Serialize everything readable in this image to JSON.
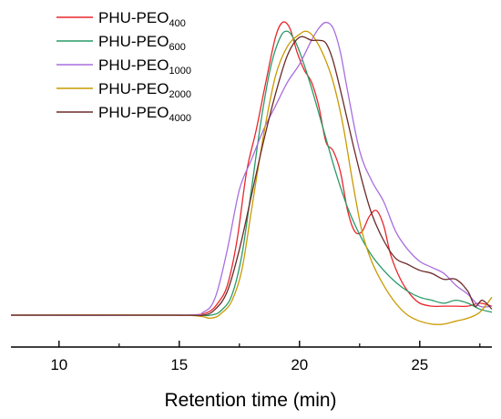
{
  "chart_data": {
    "type": "line",
    "title": "",
    "xlabel": "Retention time (min)",
    "ylabel": "",
    "xlim": [
      8,
      28
    ],
    "ylim": [
      -0.15,
      1.0
    ],
    "xticks": [
      10,
      15,
      20,
      25
    ],
    "xtick_labels": [
      "10",
      "15",
      "20",
      "25"
    ],
    "grid": false,
    "legend_position": "top-left",
    "series": [
      {
        "name": "PHU-PEO400",
        "label_main": "PHU-PEO",
        "label_sub": "400",
        "color": "#e8262b",
        "x": [
          8,
          14,
          15.5,
          16.2,
          16.6,
          17.0,
          17.4,
          17.8,
          18.2,
          18.6,
          19.0,
          19.3,
          19.6,
          19.9,
          20.2,
          20.5,
          20.8,
          21.1,
          21.4,
          21.7,
          22.0,
          22.3,
          22.6,
          22.9,
          23.2,
          23.5,
          23.8,
          24.2,
          24.6,
          25.0,
          25.5,
          26.0,
          26.5,
          27.0,
          27.5,
          28.0
        ],
        "y": [
          0.0,
          0.0,
          0.0,
          0.01,
          0.04,
          0.1,
          0.25,
          0.48,
          0.62,
          0.78,
          0.93,
          0.98,
          0.96,
          0.88,
          0.82,
          0.78,
          0.7,
          0.58,
          0.55,
          0.48,
          0.35,
          0.28,
          0.28,
          0.33,
          0.35,
          0.3,
          0.2,
          0.12,
          0.07,
          0.04,
          0.03,
          0.03,
          0.03,
          0.03,
          0.04,
          0.03
        ]
      },
      {
        "name": "PHU-PEO600",
        "label_main": "PHU-PEO",
        "label_sub": "600",
        "color": "#2a9a69",
        "x": [
          8,
          15,
          16.3,
          16.8,
          17.2,
          17.6,
          18.0,
          18.4,
          18.8,
          19.2,
          19.5,
          19.8,
          20.1,
          20.5,
          21.0,
          21.5,
          22.0,
          22.5,
          23.0,
          23.5,
          24.0,
          24.5,
          25.0,
          25.5,
          26.0,
          26.5,
          27.0,
          27.5,
          28.0
        ],
        "y": [
          0.0,
          0.0,
          0.0,
          0.02,
          0.07,
          0.2,
          0.42,
          0.65,
          0.83,
          0.93,
          0.95,
          0.92,
          0.86,
          0.76,
          0.62,
          0.48,
          0.36,
          0.27,
          0.2,
          0.15,
          0.11,
          0.08,
          0.06,
          0.05,
          0.04,
          0.05,
          0.04,
          0.02,
          0.01
        ]
      },
      {
        "name": "PHU-PEO1000",
        "label_main": "PHU-PEO",
        "label_sub": "1000",
        "color": "#a86ede",
        "x": [
          8,
          15,
          16.0,
          16.5,
          17.0,
          17.5,
          18.0,
          18.5,
          19.0,
          19.5,
          20.0,
          20.5,
          20.8,
          21.1,
          21.4,
          21.7,
          22.0,
          22.5,
          23.0,
          23.5,
          24.0,
          24.5,
          25.0,
          25.5,
          26.0,
          26.5,
          27.0,
          27.5,
          28.0
        ],
        "y": [
          0.0,
          0.0,
          0.01,
          0.06,
          0.22,
          0.42,
          0.52,
          0.62,
          0.7,
          0.78,
          0.84,
          0.92,
          0.96,
          0.98,
          0.96,
          0.88,
          0.75,
          0.55,
          0.45,
          0.38,
          0.28,
          0.22,
          0.18,
          0.16,
          0.14,
          0.1,
          0.07,
          0.03,
          0.03
        ]
      },
      {
        "name": "PHU-PEO2000",
        "label_main": "PHU-PEO",
        "label_sub": "2000",
        "color": "#c99a00",
        "x": [
          8,
          15,
          16.3,
          16.8,
          17.2,
          17.6,
          18.0,
          18.5,
          19.0,
          19.5,
          20.0,
          20.3,
          20.6,
          21.0,
          21.4,
          21.8,
          22.2,
          22.6,
          23.0,
          23.5,
          24.0,
          24.5,
          25.0,
          25.5,
          26.0,
          26.5,
          27.0,
          27.5,
          28.0
        ],
        "y": [
          0.0,
          0.0,
          -0.01,
          0.01,
          0.05,
          0.15,
          0.35,
          0.6,
          0.8,
          0.9,
          0.94,
          0.95,
          0.93,
          0.87,
          0.78,
          0.64,
          0.45,
          0.28,
          0.18,
          0.1,
          0.04,
          0.0,
          -0.02,
          -0.03,
          -0.03,
          -0.02,
          -0.01,
          0.01,
          0.06
        ]
      },
      {
        "name": "PHU-PEO4000",
        "label_main": "PHU-PEO",
        "label_sub": "4000",
        "color": "#6b2a2a",
        "x": [
          8,
          15,
          16.0,
          16.5,
          17.0,
          17.5,
          18.0,
          18.5,
          19.0,
          19.5,
          20.0,
          20.5,
          20.8,
          21.1,
          21.4,
          21.8,
          22.2,
          22.6,
          23.0,
          23.5,
          24.0,
          24.5,
          25.0,
          25.5,
          26.0,
          26.5,
          27.0,
          27.3,
          27.6,
          28.0
        ],
        "y": [
          0.0,
          0.0,
          0.0,
          0.02,
          0.08,
          0.22,
          0.4,
          0.58,
          0.74,
          0.87,
          0.93,
          0.92,
          0.92,
          0.91,
          0.85,
          0.72,
          0.58,
          0.45,
          0.34,
          0.25,
          0.19,
          0.17,
          0.15,
          0.14,
          0.12,
          0.12,
          0.08,
          0.03,
          0.05,
          0.02
        ]
      }
    ]
  }
}
